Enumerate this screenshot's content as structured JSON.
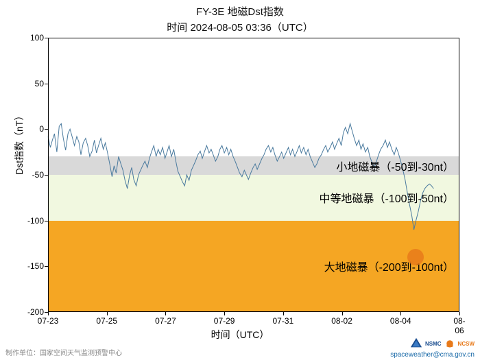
{
  "title": {
    "main": "FY-3E 地磁Dst指数",
    "sub": "时间 2024-08-05 03:36（UTC）",
    "fontsize": 15
  },
  "chart": {
    "type": "line",
    "background_color": "#ffffff",
    "line_color": "#4a7a9e",
    "line_width": 1,
    "ylim": [
      -200,
      100
    ],
    "xlim_days": [
      0,
      14
    ],
    "yticks": [
      -200,
      -150,
      -100,
      -50,
      0,
      50,
      100
    ],
    "xticks": [
      {
        "pos": 0,
        "label": "07-23"
      },
      {
        "pos": 2,
        "label": "07-25"
      },
      {
        "pos": 4,
        "label": "07-27"
      },
      {
        "pos": 6,
        "label": "07-29"
      },
      {
        "pos": 8,
        "label": "07-31"
      },
      {
        "pos": 10,
        "label": "08-02"
      },
      {
        "pos": 12,
        "label": "08-04"
      },
      {
        "pos": 14,
        "label": "08-06"
      }
    ],
    "ylabel": "Dst指数（nT）",
    "xlabel": "时间（UTC）",
    "label_fontsize": 14,
    "tick_fontsize": 12,
    "bands": [
      {
        "from": -50,
        "to": -30,
        "color": "#d9d9d9",
        "label": "小地磁暴（-50到-30nt）"
      },
      {
        "from": -100,
        "to": -50,
        "color": "#f1f8e0",
        "label": "中等地磁暴（-100到-50nt）"
      },
      {
        "from": -200,
        "to": -100,
        "color": "#f5a623",
        "label": "大地磁暴（-200到-100nt）"
      }
    ],
    "band_label_fontsize": 16,
    "marker": {
      "x_day": 12.5,
      "y_val": -140,
      "radius": 12,
      "color": "#e87a1a",
      "opacity": 0.85
    },
    "data": [
      [
        0.0,
        -8
      ],
      [
        0.08,
        -20
      ],
      [
        0.15,
        -12
      ],
      [
        0.22,
        -5
      ],
      [
        0.3,
        -25
      ],
      [
        0.38,
        3
      ],
      [
        0.45,
        6
      ],
      [
        0.52,
        -10
      ],
      [
        0.6,
        -23
      ],
      [
        0.68,
        -5
      ],
      [
        0.75,
        0
      ],
      [
        0.82,
        -8
      ],
      [
        0.9,
        -18
      ],
      [
        0.98,
        -8
      ],
      [
        1.05,
        -14
      ],
      [
        1.12,
        -28
      ],
      [
        1.2,
        -15
      ],
      [
        1.28,
        -10
      ],
      [
        1.35,
        -18
      ],
      [
        1.42,
        -30
      ],
      [
        1.5,
        -24
      ],
      [
        1.58,
        -12
      ],
      [
        1.65,
        -26
      ],
      [
        1.72,
        -18
      ],
      [
        1.8,
        -10
      ],
      [
        1.88,
        -22
      ],
      [
        1.95,
        -15
      ],
      [
        2.02,
        -25
      ],
      [
        2.1,
        -38
      ],
      [
        2.18,
        -52
      ],
      [
        2.25,
        -40
      ],
      [
        2.32,
        -48
      ],
      [
        2.4,
        -30
      ],
      [
        2.48,
        -38
      ],
      [
        2.55,
        -45
      ],
      [
        2.62,
        -56
      ],
      [
        2.7,
        -65
      ],
      [
        2.78,
        -50
      ],
      [
        2.85,
        -42
      ],
      [
        2.92,
        -55
      ],
      [
        3.0,
        -62
      ],
      [
        3.08,
        -50
      ],
      [
        3.15,
        -45
      ],
      [
        3.22,
        -40
      ],
      [
        3.3,
        -35
      ],
      [
        3.38,
        -42
      ],
      [
        3.45,
        -32
      ],
      [
        3.52,
        -25
      ],
      [
        3.6,
        -18
      ],
      [
        3.68,
        -30
      ],
      [
        3.75,
        -22
      ],
      [
        3.82,
        -28
      ],
      [
        3.9,
        -20
      ],
      [
        3.98,
        -32
      ],
      [
        4.05,
        -25
      ],
      [
        4.12,
        -18
      ],
      [
        4.2,
        -30
      ],
      [
        4.28,
        -22
      ],
      [
        4.35,
        -35
      ],
      [
        4.42,
        -46
      ],
      [
        4.5,
        -52
      ],
      [
        4.58,
        -58
      ],
      [
        4.65,
        -62
      ],
      [
        4.72,
        -50
      ],
      [
        4.8,
        -56
      ],
      [
        4.88,
        -45
      ],
      [
        4.95,
        -40
      ],
      [
        5.02,
        -35
      ],
      [
        5.1,
        -28
      ],
      [
        5.18,
        -24
      ],
      [
        5.25,
        -32
      ],
      [
        5.32,
        -25
      ],
      [
        5.4,
        -18
      ],
      [
        5.48,
        -26
      ],
      [
        5.55,
        -22
      ],
      [
        5.62,
        -28
      ],
      [
        5.7,
        -35
      ],
      [
        5.78,
        -30
      ],
      [
        5.85,
        -22
      ],
      [
        5.92,
        -18
      ],
      [
        6.0,
        -26
      ],
      [
        6.08,
        -20
      ],
      [
        6.15,
        -28
      ],
      [
        6.22,
        -22
      ],
      [
        6.3,
        -30
      ],
      [
        6.38,
        -36
      ],
      [
        6.45,
        -42
      ],
      [
        6.52,
        -48
      ],
      [
        6.6,
        -52
      ],
      [
        6.68,
        -45
      ],
      [
        6.75,
        -50
      ],
      [
        6.82,
        -55
      ],
      [
        6.9,
        -48
      ],
      [
        6.98,
        -42
      ],
      [
        7.05,
        -38
      ],
      [
        7.12,
        -44
      ],
      [
        7.2,
        -38
      ],
      [
        7.28,
        -32
      ],
      [
        7.35,
        -28
      ],
      [
        7.42,
        -22
      ],
      [
        7.5,
        -18
      ],
      [
        7.58,
        -25
      ],
      [
        7.65,
        -20
      ],
      [
        7.72,
        -28
      ],
      [
        7.8,
        -35
      ],
      [
        7.88,
        -30
      ],
      [
        7.95,
        -25
      ],
      [
        8.02,
        -32
      ],
      [
        8.1,
        -26
      ],
      [
        8.18,
        -20
      ],
      [
        8.25,
        -28
      ],
      [
        8.32,
        -22
      ],
      [
        8.4,
        -30
      ],
      [
        8.48,
        -24
      ],
      [
        8.55,
        -18
      ],
      [
        8.62,
        -26
      ],
      [
        8.7,
        -20
      ],
      [
        8.78,
        -28
      ],
      [
        8.85,
        -22
      ],
      [
        8.92,
        -30
      ],
      [
        9.0,
        -36
      ],
      [
        9.08,
        -42
      ],
      [
        9.15,
        -38
      ],
      [
        9.22,
        -32
      ],
      [
        9.3,
        -28
      ],
      [
        9.38,
        -22
      ],
      [
        9.45,
        -18
      ],
      [
        9.52,
        -25
      ],
      [
        9.6,
        -20
      ],
      [
        9.68,
        -14
      ],
      [
        9.75,
        -22
      ],
      [
        9.82,
        -16
      ],
      [
        9.9,
        -10
      ],
      [
        9.98,
        -18
      ],
      [
        10.05,
        -4
      ],
      [
        10.12,
        2
      ],
      [
        10.2,
        -5
      ],
      [
        10.28,
        6
      ],
      [
        10.35,
        -2
      ],
      [
        10.42,
        -10
      ],
      [
        10.5,
        -18
      ],
      [
        10.58,
        -12
      ],
      [
        10.65,
        -22
      ],
      [
        10.72,
        -16
      ],
      [
        10.8,
        -25
      ],
      [
        10.88,
        -20
      ],
      [
        10.95,
        -30
      ],
      [
        11.02,
        -36
      ],
      [
        11.1,
        -42
      ],
      [
        11.18,
        -35
      ],
      [
        11.25,
        -28
      ],
      [
        11.32,
        -22
      ],
      [
        11.4,
        -18
      ],
      [
        11.48,
        -12
      ],
      [
        11.55,
        -20
      ],
      [
        11.62,
        -14
      ],
      [
        11.7,
        -22
      ],
      [
        11.78,
        -28
      ],
      [
        11.85,
        -20
      ],
      [
        11.92,
        -26
      ],
      [
        12.0,
        -35
      ],
      [
        12.08,
        -45
      ],
      [
        12.15,
        -55
      ],
      [
        12.22,
        -68
      ],
      [
        12.3,
        -82
      ],
      [
        12.38,
        -95
      ],
      [
        12.45,
        -110
      ],
      [
        12.52,
        -100
      ],
      [
        12.6,
        -90
      ],
      [
        12.68,
        -78
      ],
      [
        12.75,
        -70
      ],
      [
        12.82,
        -65
      ],
      [
        12.9,
        -62
      ],
      [
        12.98,
        -60
      ],
      [
        13.05,
        -62
      ],
      [
        13.12,
        -65
      ]
    ]
  },
  "footer": {
    "left": "制作单位：国家空间天气监测预警中心",
    "link": "spaceweather@cma.gov.cn",
    "nsmc_label": "NSMC",
    "ncsw_label": "NCSW",
    "nsmc_color": "#1a4d8f",
    "ncsw_color": "#e87a1a"
  }
}
